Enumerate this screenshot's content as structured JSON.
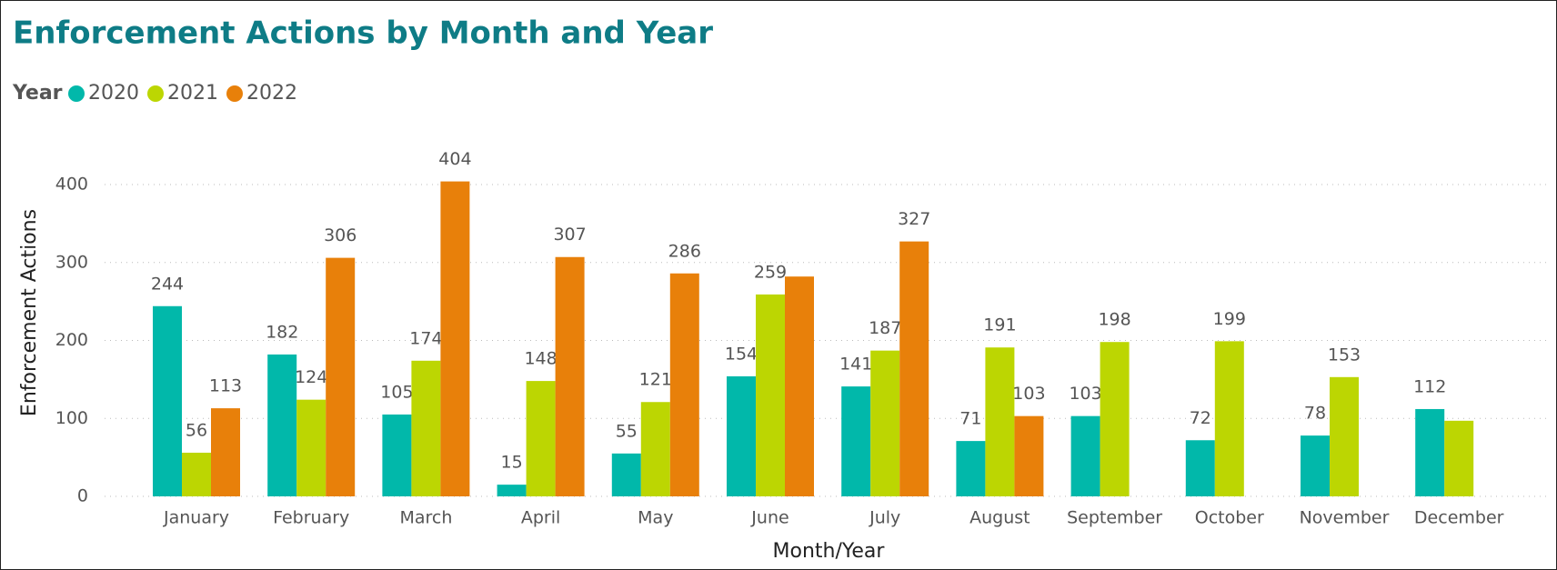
{
  "chart_data": {
    "type": "bar",
    "title": "Enforcement Actions by Month and Year",
    "legend_title": "Year",
    "x_label": "Month/Year",
    "y_label": "Enforcement Actions",
    "categories": [
      "January",
      "February",
      "March",
      "April",
      "May",
      "June",
      "July",
      "August",
      "September",
      "October",
      "November",
      "December"
    ],
    "series": [
      {
        "name": "2020",
        "color": "#01B8AA",
        "values": [
          244,
          182,
          105,
          15,
          55,
          154,
          141,
          71,
          103,
          72,
          78,
          112
        ]
      },
      {
        "name": "2021",
        "color": "#BCD602",
        "values": [
          56,
          124,
          174,
          148,
          121,
          259,
          187,
          191,
          198,
          199,
          153,
          97
        ],
        "value_labels": [
          "56",
          "124",
          "174",
          "148",
          "121",
          "259",
          "187",
          "191",
          "198",
          "199",
          "153",
          null
        ]
      },
      {
        "name": "2022",
        "color": "#E8800A",
        "values": [
          113,
          306,
          404,
          307,
          286,
          282,
          327,
          103,
          null,
          null,
          null,
          null
        ],
        "value_labels": [
          "113",
          "306",
          "404",
          "307",
          "286",
          null,
          "327",
          "103",
          null,
          null,
          null,
          null
        ]
      }
    ],
    "ylim": [
      0,
      400
    ],
    "yticks": [
      0,
      100,
      200,
      300,
      400
    ],
    "grid": true,
    "legend": "top-left"
  }
}
